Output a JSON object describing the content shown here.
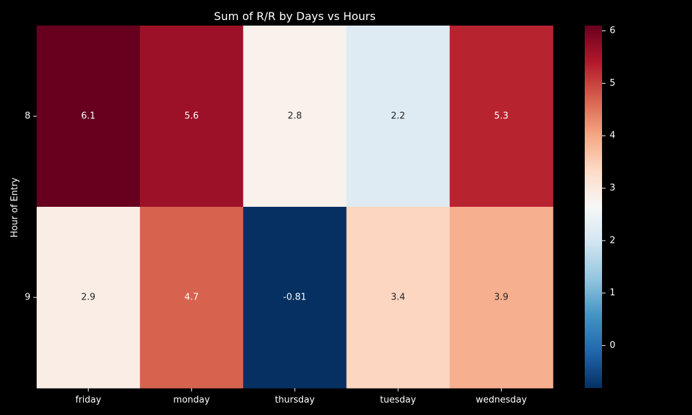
{
  "chart_data": {
    "type": "heatmap",
    "title": "Sum of R/R by Days vs Hours",
    "xlabel": "",
    "ylabel": "Hour of Entry",
    "x_categories": [
      "friday",
      "monday",
      "thursday",
      "tuesday",
      "wednesday"
    ],
    "y_categories": [
      "8",
      "9"
    ],
    "values": [
      [
        6.1,
        5.6,
        2.8,
        2.2,
        5.3
      ],
      [
        2.9,
        4.7,
        -0.81,
        3.4,
        3.9
      ]
    ],
    "cell_labels": [
      [
        "6.1",
        "5.6",
        "2.8",
        "2.2",
        "5.3"
      ],
      [
        "2.9",
        "4.7",
        "-0.81",
        "3.4",
        "3.9"
      ]
    ],
    "colorscale": "RdBu_r",
    "color_range": [
      -0.81,
      6.1
    ],
    "colorbar_ticks": [
      "0",
      "1",
      "2",
      "3",
      "4",
      "5",
      "6"
    ],
    "colorbar_tick_values": [
      0,
      1,
      2,
      3,
      4,
      5,
      6
    ],
    "background": "#000000",
    "text_color": "#ffffff"
  }
}
